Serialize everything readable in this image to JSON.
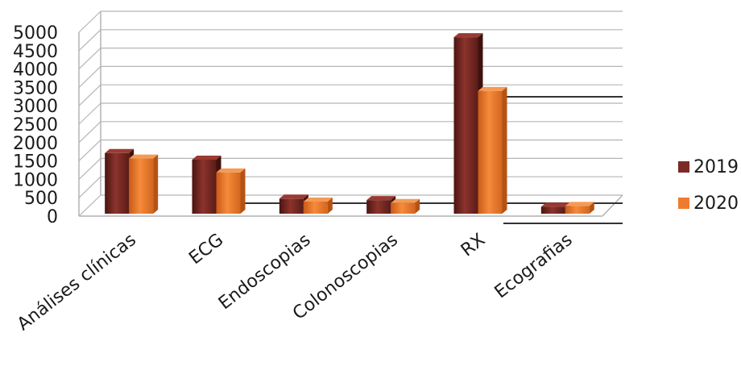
{
  "chart_data": {
    "type": "bar",
    "categories": [
      "Análises clínicas",
      "ECG",
      "Endoscopias",
      "Colonoscopias",
      "RX",
      "Ecografias"
    ],
    "series": [
      {
        "name": "2019",
        "values": [
          1650,
          1470,
          410,
          370,
          4800,
          190
        ],
        "color": "#7b2a25"
      },
      {
        "name": "2020",
        "values": [
          1500,
          1120,
          330,
          290,
          3340,
          210
        ],
        "color": "#ef7c2e"
      }
    ],
    "y_ticks": [
      "0",
      "500",
      "1000",
      "1500",
      "2000",
      "2500",
      "3000",
      "3500",
      "4000",
      "4500",
      "5000"
    ],
    "ylim": [
      0,
      5000
    ],
    "grid": true,
    "legend_position": "right",
    "title": "",
    "xlabel": "",
    "ylabel": ""
  }
}
